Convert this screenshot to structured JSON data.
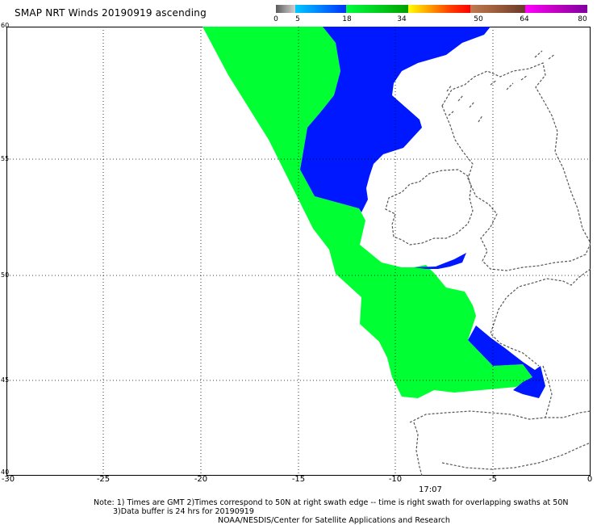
{
  "title": "SMAP NRT Winds 20190919 ascending",
  "colorbar": {
    "segments": [
      {
        "from": 0,
        "to": 5,
        "colors": [
          "#5a5a5a",
          "#9a9a9a",
          "#cfcfcf"
        ]
      },
      {
        "from": 5,
        "to": 18,
        "colors": [
          "#00c8ff",
          "#0080ff",
          "#0030ff"
        ]
      },
      {
        "from": 18,
        "to": 34,
        "colors": [
          "#00ff40",
          "#00d020",
          "#00a000"
        ]
      },
      {
        "from": 34,
        "to": 50,
        "colors": [
          "#ffff00",
          "#ffa000",
          "#ff4000",
          "#ff0000"
        ]
      },
      {
        "from": 50,
        "to": 64,
        "colors": [
          "#c07a50",
          "#9a5a3a",
          "#6a3a2a"
        ]
      },
      {
        "from": 64,
        "to": 80,
        "colors": [
          "#ff00ff",
          "#c000c0",
          "#8000a0"
        ]
      }
    ],
    "labels": [
      "0",
      "5",
      "18",
      "34",
      "50",
      "64",
      "80"
    ]
  },
  "map": {
    "lon_min": -30,
    "lon_max": 0,
    "lat_min": 40,
    "lat_max": 60,
    "lat_ticks": [
      "60",
      "55",
      "50",
      "45",
      "40"
    ],
    "lon_ticks": [
      "-30",
      "-25",
      "-20",
      "-15",
      "-10",
      "-5",
      "0"
    ],
    "swath_colors": {
      "green": "#00ff33",
      "blue": "#0000ff"
    }
  },
  "time_label": "17:07",
  "notes": [
    "Note: 1) Times are GMT 2)Times correspond to 50N at right swath edge -- time is right swath for overlapping swaths at 50N",
    "3)Data buffer is 24 hrs for 20190919",
    "NOAA/NESDIS/Center for Satellite Applications and Research"
  ]
}
